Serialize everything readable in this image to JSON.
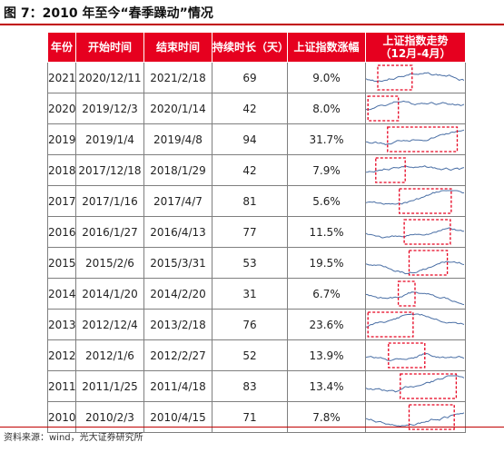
{
  "title": "图 7：2010 年至今“春季躁动”情况",
  "source": "资料来源：wind，光大证券研究所",
  "colors": {
    "header_bg": "#e6001f",
    "line": "#4a6fa5",
    "box": "#e6001f",
    "rule": "#c00000"
  },
  "columns": [
    "年份",
    "开始时间",
    "结束时间",
    "持续时长（天）",
    "上证指数涨幅",
    "上证指数走势\n（12月-4月）"
  ],
  "rows": [
    {
      "year": "2021",
      "start": "2020/12/11",
      "end": "2021/2/18",
      "days": "69",
      "gain": "9.0%"
    },
    {
      "year": "2020",
      "start": "2019/12/3",
      "end": "2020/1/14",
      "days": "42",
      "gain": "8.0%"
    },
    {
      "year": "2019",
      "start": "2019/1/4",
      "end": "2019/4/8",
      "days": "94",
      "gain": "31.7%"
    },
    {
      "year": "2018",
      "start": "2017/12/18",
      "end": "2018/1/29",
      "days": "42",
      "gain": "7.9%"
    },
    {
      "year": "2017",
      "start": "2017/1/16",
      "end": "2017/4/7",
      "days": "81",
      "gain": "5.6%"
    },
    {
      "year": "2016",
      "start": "2016/1/27",
      "end": "2016/4/13",
      "days": "77",
      "gain": "11.5%"
    },
    {
      "year": "2015",
      "start": "2015/2/6",
      "end": "2015/3/31",
      "days": "53",
      "gain": "19.5%"
    },
    {
      "year": "2014",
      "start": "2014/1/20",
      "end": "2014/2/20",
      "days": "31",
      "gain": "6.7%"
    },
    {
      "year": "2013",
      "start": "2012/12/4",
      "end": "2013/2/18",
      "days": "76",
      "gain": "23.6%"
    },
    {
      "year": "2012",
      "start": "2012/1/6",
      "end": "2012/2/27",
      "days": "52",
      "gain": "13.9%"
    },
    {
      "year": "2011",
      "start": "2011/1/25",
      "end": "2011/4/18",
      "days": "83",
      "gain": "13.4%"
    },
    {
      "year": "2010",
      "start": "2010/2/3",
      "end": "2010/4/15",
      "days": "71",
      "gain": "7.8%"
    }
  ]
}
